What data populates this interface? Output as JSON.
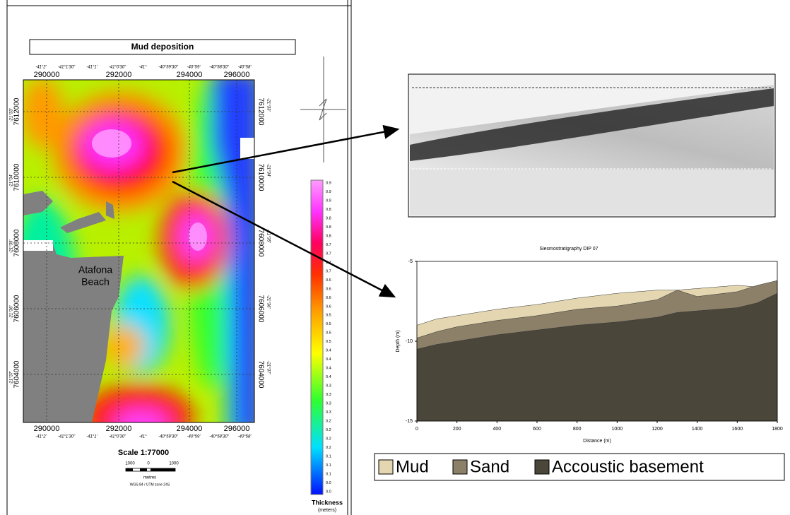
{
  "map": {
    "title": "Mud deposition",
    "eastings": [
      "290000",
      "292000",
      "294000",
      "296000"
    ],
    "northings": [
      "7612000",
      "7610000",
      "7608000",
      "7606000",
      "7604000"
    ],
    "longitudes": [
      "-41°2'",
      "-41°1'30\"",
      "-41°1'",
      "-41°0'30\"",
      "-41°",
      "-40°59'30\"",
      "-40°59'",
      "-40°58'30\"",
      "-40°58'"
    ],
    "latitudes": [
      "-21°33'",
      "-21°34'",
      "-21°35'",
      "-21°36'",
      "-21°37'"
    ],
    "place_label": [
      "Atafona",
      "Beach"
    ],
    "scale": {
      "title": "Scale 1:77000",
      "labels": [
        "1000",
        "0",
        "1000"
      ],
      "unit": "metres",
      "projection": "WGS 84 / UTM zone 24S"
    },
    "colorbar": {
      "title": "Thickness",
      "unit": "(meters)",
      "labels": [
        "0.9",
        "0.9",
        "0.9",
        "0.8",
        "0.8",
        "0.8",
        "0.8",
        "0.7",
        "0.7",
        "0.7",
        "0.7",
        "0.6",
        "0.6",
        "0.6",
        "0.6",
        "0.5",
        "0.5",
        "0.5",
        "0.5",
        "0.4",
        "0.4",
        "0.4",
        "0.4",
        "0.3",
        "0.3",
        "0.3",
        "0.3",
        "0.2",
        "0.2",
        "0.2",
        "0.2",
        "0.1",
        "0.1",
        "0.1",
        "0.0",
        "0.0"
      ]
    }
  },
  "chart_data": {
    "type": "area",
    "title": "Siesmostratigraphy DIP 07",
    "x_label": "Distance (m)",
    "y_label": "Depth (m)",
    "x": [
      0,
      100,
      200,
      400,
      600,
      800,
      1000,
      1200,
      1300,
      1400,
      1600,
      1700,
      1800
    ],
    "series": [
      {
        "name": "Mud",
        "color": "#e3d6b0",
        "values": [
          -9.0,
          -8.6,
          -8.4,
          -8.0,
          -7.7,
          -7.3,
          -7.0,
          -6.8,
          -6.8,
          -6.7,
          -6.5,
          -6.6,
          -6.2
        ]
      },
      {
        "name": "Sand",
        "color": "#8c8069",
        "values": [
          -9.8,
          -9.4,
          -9.1,
          -8.7,
          -8.4,
          -8.0,
          -7.8,
          -7.4,
          -6.8,
          -7.2,
          -6.9,
          -6.5,
          -6.2
        ]
      },
      {
        "name": "Accoustic basement",
        "color": "#4b463a",
        "values": [
          -10.5,
          -10.2,
          -10.0,
          -9.6,
          -9.3,
          -9.0,
          -8.8,
          -8.5,
          -8.2,
          -8.1,
          -7.9,
          -7.6,
          -7.0
        ]
      }
    ],
    "xlim": [
      0,
      1800
    ],
    "xticks": [
      0,
      200,
      400,
      600,
      800,
      1000,
      1200,
      1400,
      1600,
      1800
    ],
    "ylim": [
      -15,
      -5
    ],
    "yticks": [
      -15,
      -10,
      -5
    ]
  }
}
